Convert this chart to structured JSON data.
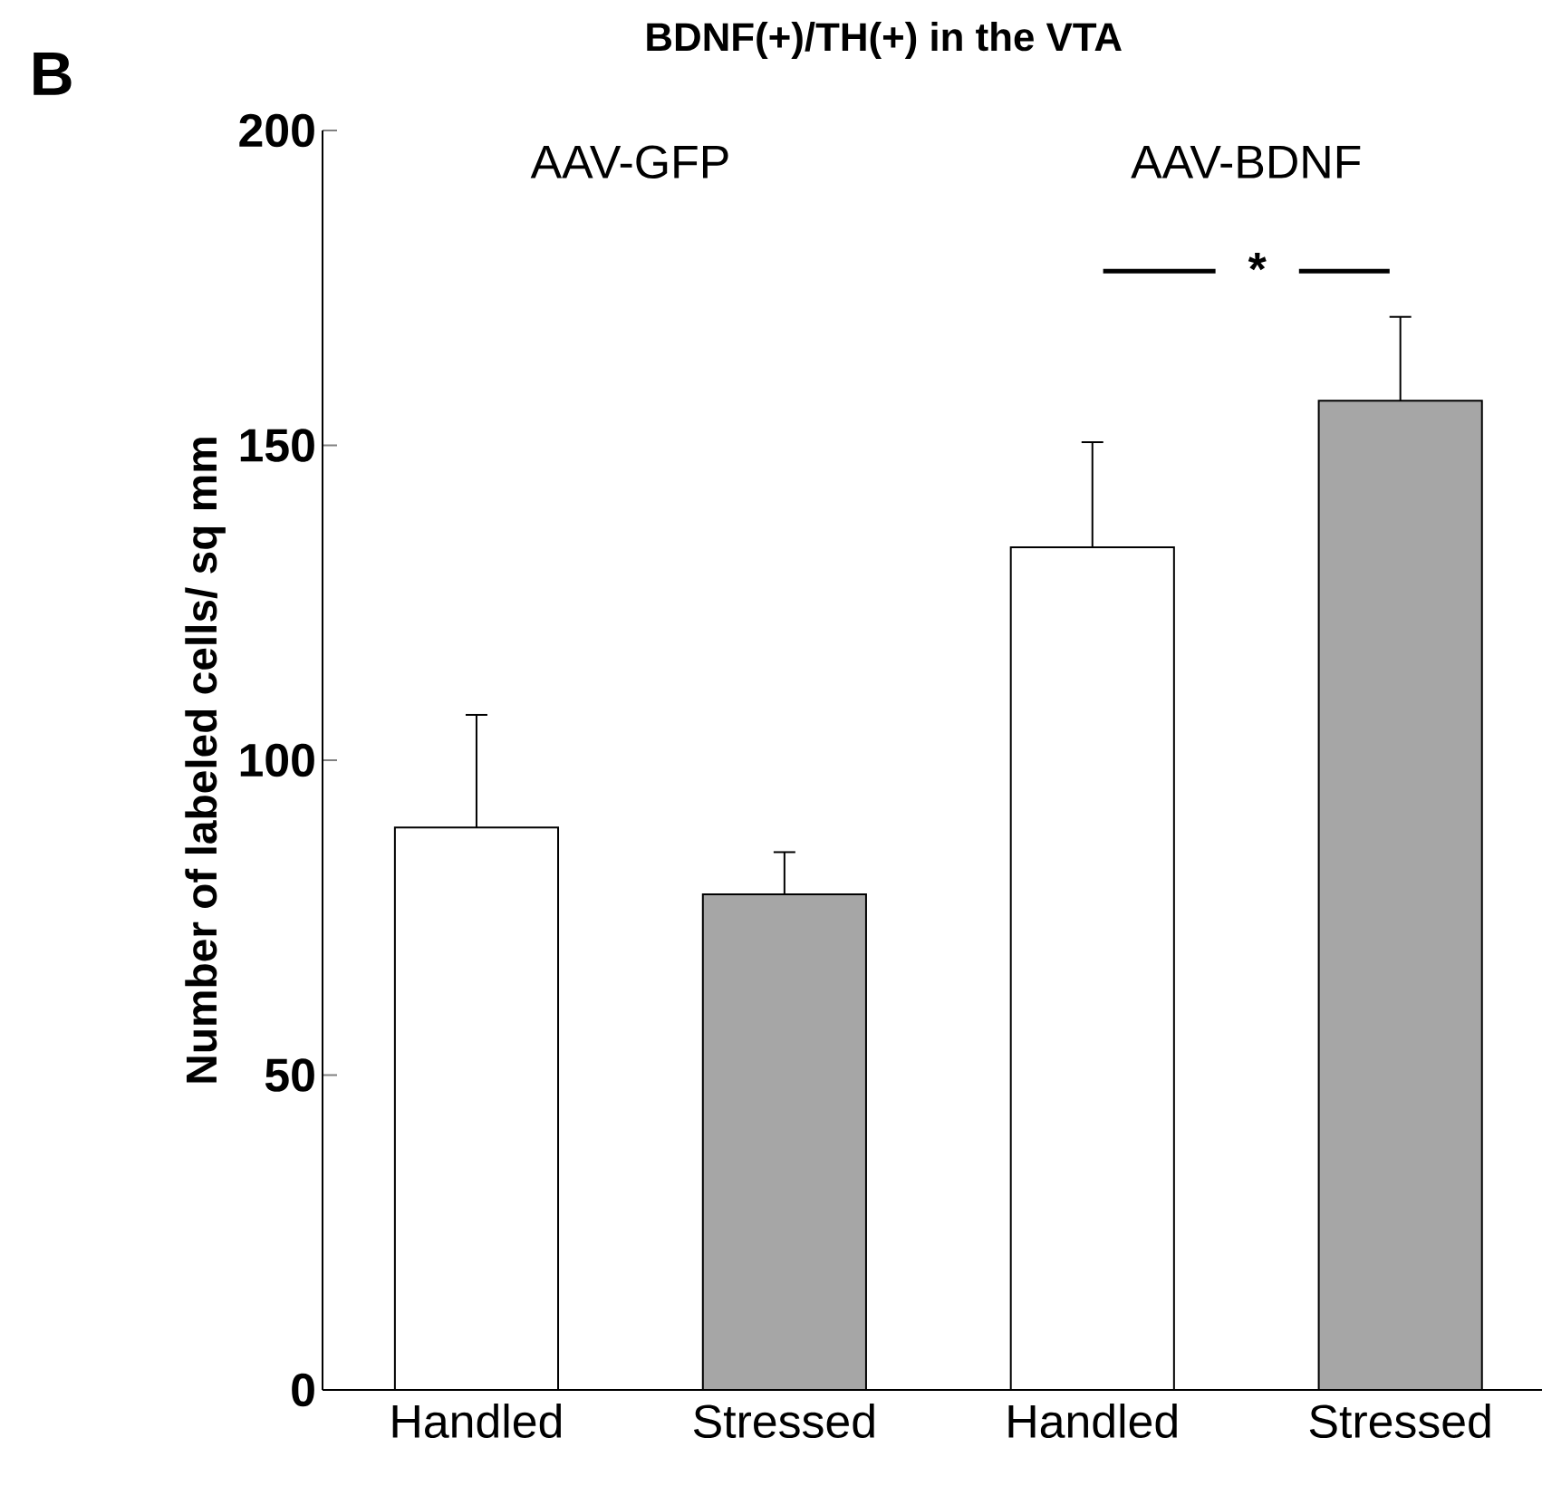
{
  "chart_data": {
    "type": "bar",
    "title": "BDNF(+)/TH(+) in the VTA",
    "ylabel": "Number of labeled cells/ sq mm",
    "categories": [
      "Handled",
      "Stressed",
      "Handled",
      "Stressed"
    ],
    "values": [
      89.3,
      78.7,
      133.8,
      157.1
    ],
    "colors": [
      "#ffffff",
      "#a6a6a6",
      "#ffffff",
      "#a6a6a6"
    ],
    "errors": [
      [
        89.3,
        107.2
      ],
      [
        78.7,
        85.4
      ],
      [
        133.8,
        150.5
      ],
      [
        157.1,
        170.4
      ]
    ],
    "ylim": [
      0,
      200
    ],
    "yticks": [
      0,
      50,
      100,
      150,
      200
    ],
    "annotations": [
      "B",
      "AAV-GFP",
      "AAV-BDNF",
      "*"
    ]
  }
}
